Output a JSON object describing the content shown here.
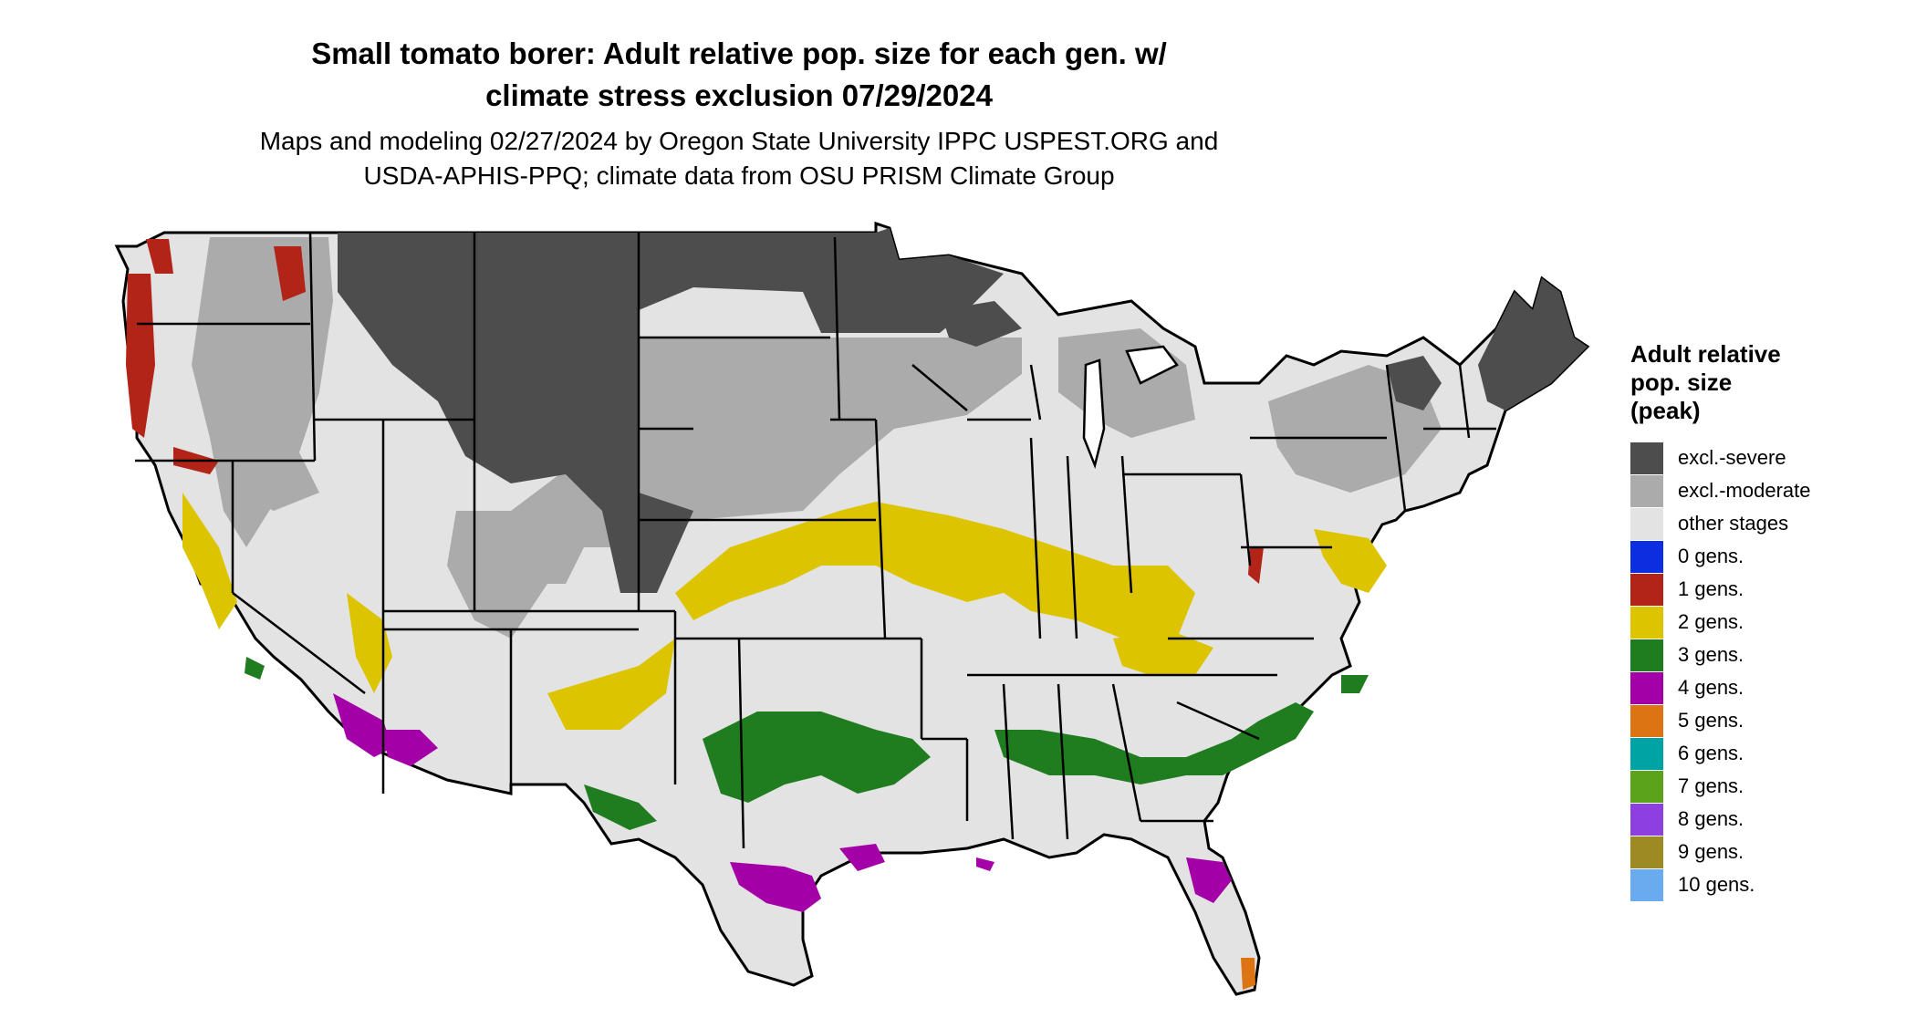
{
  "title_lines": [
    "Small tomato borer: Adult relative pop. size for each gen. w/",
    "climate stress exclusion 07/29/2024"
  ],
  "subtitle_lines": [
    "Maps and modeling 02/27/2024 by Oregon State University IPPC USPEST.ORG and",
    "USDA-APHIS-PPQ; climate data from OSU PRISM Climate Group"
  ],
  "legend": {
    "title_lines": [
      "Adult relative",
      "pop. size",
      "(peak)"
    ],
    "items": [
      {
        "label": "excl.-severe",
        "color": "#4d4d4d"
      },
      {
        "label": "excl.-moderate",
        "color": "#ababab"
      },
      {
        "label": "other stages",
        "color": "#e3e3e3"
      },
      {
        "label": "0 gens.",
        "color": "#0a2ee0"
      },
      {
        "label": "1 gens.",
        "color": "#b22418"
      },
      {
        "label": "2 gens.",
        "color": "#ddc400"
      },
      {
        "label": "3 gens.",
        "color": "#1f7d1f"
      },
      {
        "label": "4 gens.",
        "color": "#a300a8"
      },
      {
        "label": "5 gens.",
        "color": "#dd7414"
      },
      {
        "label": "6 gens.",
        "color": "#00a3a3"
      },
      {
        "label": "7 gens.",
        "color": "#5aa31a"
      },
      {
        "label": "8 gens.",
        "color": "#8e3fe0"
      },
      {
        "label": "9 gens.",
        "color": "#9e8a22"
      },
      {
        "label": "10 gens.",
        "color": "#6aabf0"
      }
    ]
  }
}
